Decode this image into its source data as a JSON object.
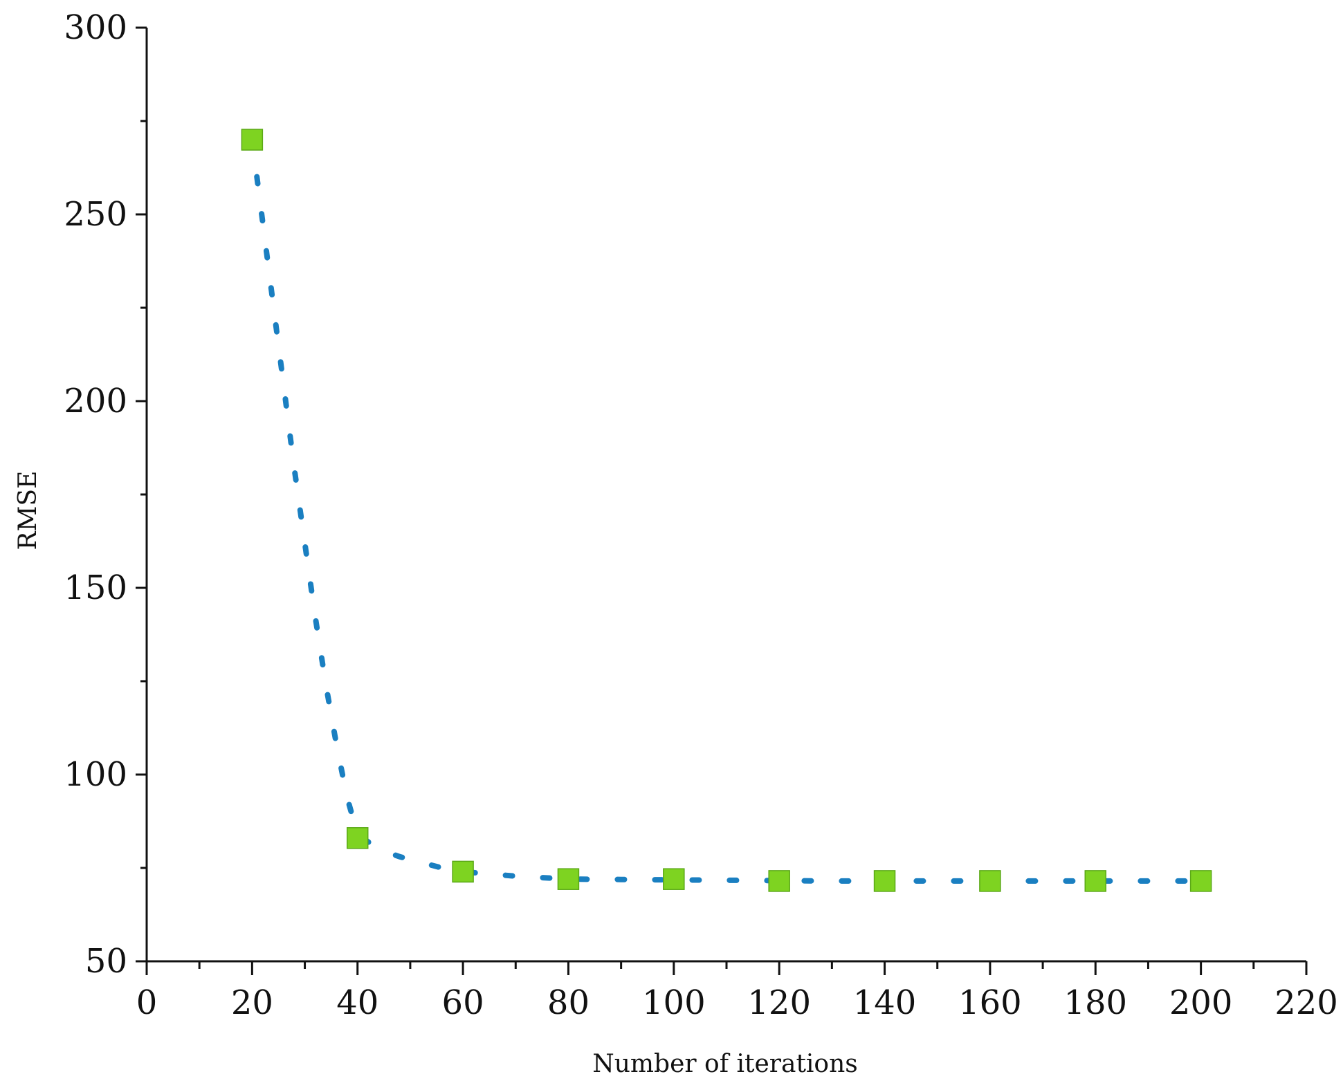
{
  "chart_data": {
    "type": "scatter",
    "title": "",
    "xlabel": "Number of iterations",
    "ylabel": "RMSE",
    "xlim": [
      0,
      220
    ],
    "ylim": [
      50,
      300
    ],
    "x_ticks": [
      0,
      20,
      40,
      60,
      80,
      100,
      120,
      140,
      160,
      180,
      200,
      220
    ],
    "y_ticks": [
      50,
      100,
      150,
      200,
      250,
      300
    ],
    "x_tick_labels": [
      "0",
      "20",
      "40",
      "60",
      "80",
      "100",
      "120",
      "140",
      "160",
      "180",
      "200",
      "220"
    ],
    "y_tick_labels": [
      "50",
      "100",
      "150",
      "200",
      "250",
      "300"
    ],
    "x_minor_step": 10,
    "y_minor_step": 25,
    "grid": false,
    "legend": "none",
    "series": [
      {
        "kind": "markers",
        "marker": "square",
        "color": "#7ed321",
        "x": [
          20,
          40,
          60,
          80,
          100,
          120,
          140,
          160,
          180,
          200
        ],
        "y": [
          270,
          83,
          74,
          72,
          72,
          71.5,
          71.5,
          71.5,
          71.5,
          71.5
        ]
      },
      {
        "kind": "fitted-curve",
        "style": "dotted",
        "color": "#1a7fc1",
        "x": [
          20,
          22,
          24,
          26,
          28,
          30,
          32,
          34,
          36,
          38,
          40,
          44,
          48,
          52,
          56,
          60,
          64,
          70,
          80,
          90,
          100,
          110,
          120,
          130,
          140,
          150,
          160,
          170,
          180,
          190,
          200
        ],
        "y": [
          270,
          248,
          226,
          204,
          182,
          162,
          142,
          124,
          108,
          94,
          84,
          80,
          78,
          76.5,
          75,
          74,
          73.5,
          72.8,
          72,
          71.9,
          71.8,
          71.7,
          71.6,
          71.5,
          71.5,
          71.5,
          71.5,
          71.5,
          71.5,
          71.5,
          71.5
        ]
      }
    ]
  }
}
